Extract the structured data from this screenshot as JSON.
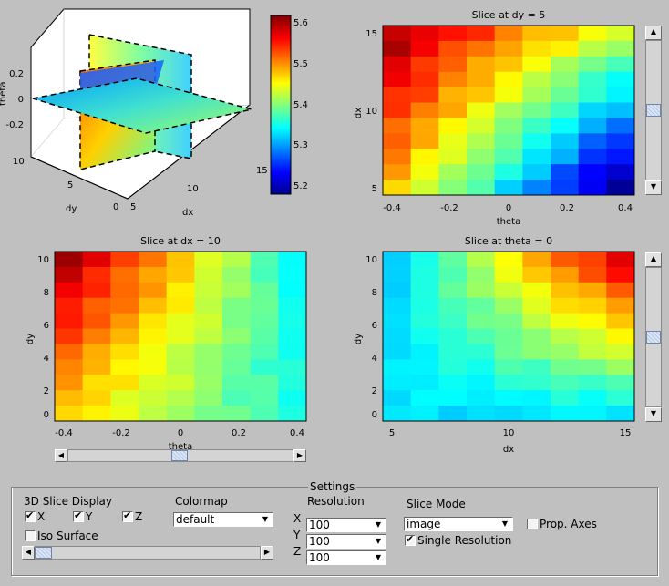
{
  "colors": {
    "background": "#c0c0c0",
    "plot_bg": "#ffffff",
    "colormap": "jet"
  },
  "plots": {
    "p3d": {
      "zlabel": "theta",
      "ylabel": "dy",
      "xlabel": "dx",
      "zticks": [
        "0.2",
        "0",
        "-0.2"
      ],
      "yticks": [
        "10",
        "5",
        "0"
      ],
      "xticks": [
        "5",
        "10",
        "15"
      ]
    },
    "colorbar": {
      "ticks": [
        "5.6",
        "5.5",
        "5.4",
        "5.3",
        "5.2"
      ]
    },
    "tr": {
      "title": "Slice at dy = 5",
      "xlabel": "theta",
      "ylabel": "dx",
      "xticks": [
        "-0.4",
        "-0.2",
        "0",
        "0.2",
        "0.4"
      ],
      "yticks": [
        "15",
        "10",
        "5"
      ]
    },
    "bl": {
      "title": "Slice at dx = 10",
      "xlabel": "theta",
      "ylabel": "dy",
      "xticks": [
        "-0.4",
        "-0.2",
        "0",
        "0.2",
        "0.4"
      ],
      "yticks": [
        "10",
        "8",
        "6",
        "4",
        "2",
        "0"
      ]
    },
    "br": {
      "title": "Slice at theta = 0",
      "xlabel": "dx",
      "ylabel": "dy",
      "xticks": [
        "5",
        "10",
        "15"
      ],
      "yticks": [
        "10",
        "8",
        "6",
        "4",
        "2",
        "0"
      ]
    }
  },
  "sliders": {
    "dy": {
      "value_fraction": 0.5
    },
    "dx": {
      "value_fraction": 0.5
    },
    "theta": {
      "value_fraction": 0.5
    },
    "iso": {
      "value_fraction": 0.0
    }
  },
  "settings": {
    "title": "Settings",
    "display_label": "3D Slice Display",
    "x_label": "X",
    "y_label": "Y",
    "z_label": "Z",
    "x_checked": true,
    "y_checked": true,
    "z_checked": true,
    "iso_label": "Iso Surface",
    "iso_checked": false,
    "colormap_label": "Colormap",
    "colormap_value": "default",
    "resolution_label": "Resolution",
    "res_x_label": "X",
    "res_y_label": "Y",
    "res_z_label": "Z",
    "res_x": "100",
    "res_y": "100",
    "res_z": "100",
    "slice_mode_label": "Slice Mode",
    "slice_mode_value": "image",
    "prop_axes_label": "Prop. Axes",
    "prop_axes_checked": false,
    "single_res_label": "Single Resolution",
    "single_res_checked": true
  }
}
